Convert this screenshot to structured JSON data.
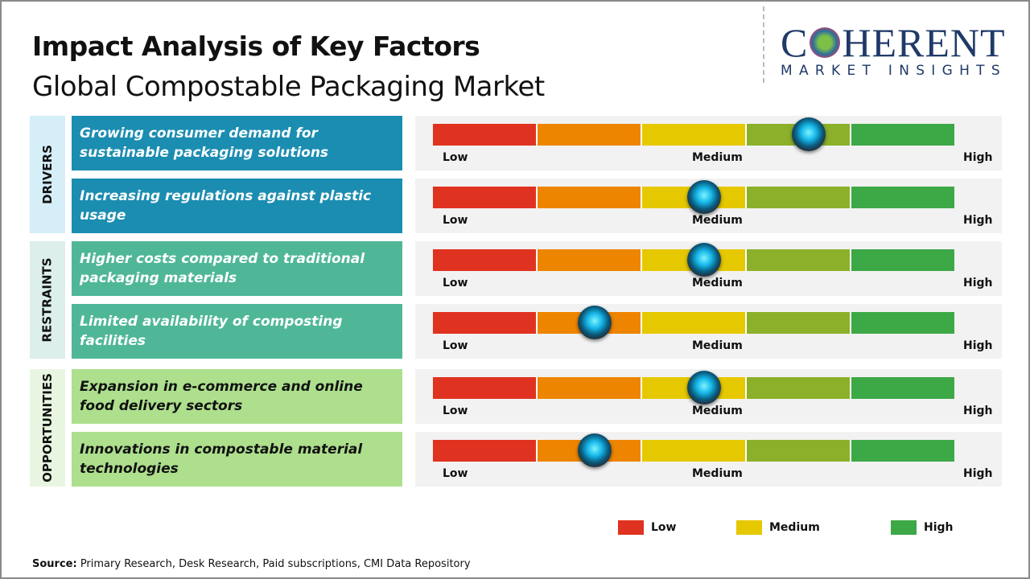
{
  "header": {
    "title": "Impact Analysis of Key Factors",
    "subtitle": "Global Compostable Packaging Market"
  },
  "logo": {
    "name_left": "C",
    "name_right": "HERENT",
    "tagline": "MARKET INSIGHTS"
  },
  "scale_labels": {
    "low": "Low",
    "medium": "Medium",
    "high": "High"
  },
  "segment_colors": [
    "#e03220",
    "#ee8500",
    "#e6c800",
    "#8cb02a",
    "#3da846"
  ],
  "categories": [
    {
      "label": "DRIVERS",
      "color": "#1b8db1",
      "bg": "#d5eef8",
      "text_color": "#ffffff"
    },
    {
      "label": "RESTRAINTS",
      "color": "#4fb797",
      "bg": "#dcefeb",
      "text_color": "#ffffff"
    },
    {
      "label": "OPPORTUNITIES",
      "color": "#addf8d",
      "bg": "#e8f6e1",
      "text_color": "#111111"
    }
  ],
  "factors": [
    {
      "category": 0,
      "text": "Growing consumer demand for sustainable packaging solutions",
      "impact": 0.72
    },
    {
      "category": 0,
      "text": "Increasing regulations against plastic usage",
      "impact": 0.52
    },
    {
      "category": 1,
      "text": "Higher costs compared to traditional packaging materials",
      "impact": 0.52
    },
    {
      "category": 1,
      "text": "Limited availability of composting facilities",
      "impact": 0.31
    },
    {
      "category": 2,
      "text": "Expansion in e-commerce and online food delivery sectors",
      "impact": 0.52
    },
    {
      "category": 2,
      "text": "Innovations in compostable material technologies",
      "impact": 0.31
    }
  ],
  "legend": [
    {
      "label": "Low",
      "color": "#e03220"
    },
    {
      "label": "Medium",
      "color": "#e6c800"
    },
    {
      "label": "High",
      "color": "#3da846"
    }
  ],
  "source": {
    "prefix": "Source:",
    "text": " Primary Research, Desk Research, Paid subscriptions, CMI Data Repository"
  }
}
